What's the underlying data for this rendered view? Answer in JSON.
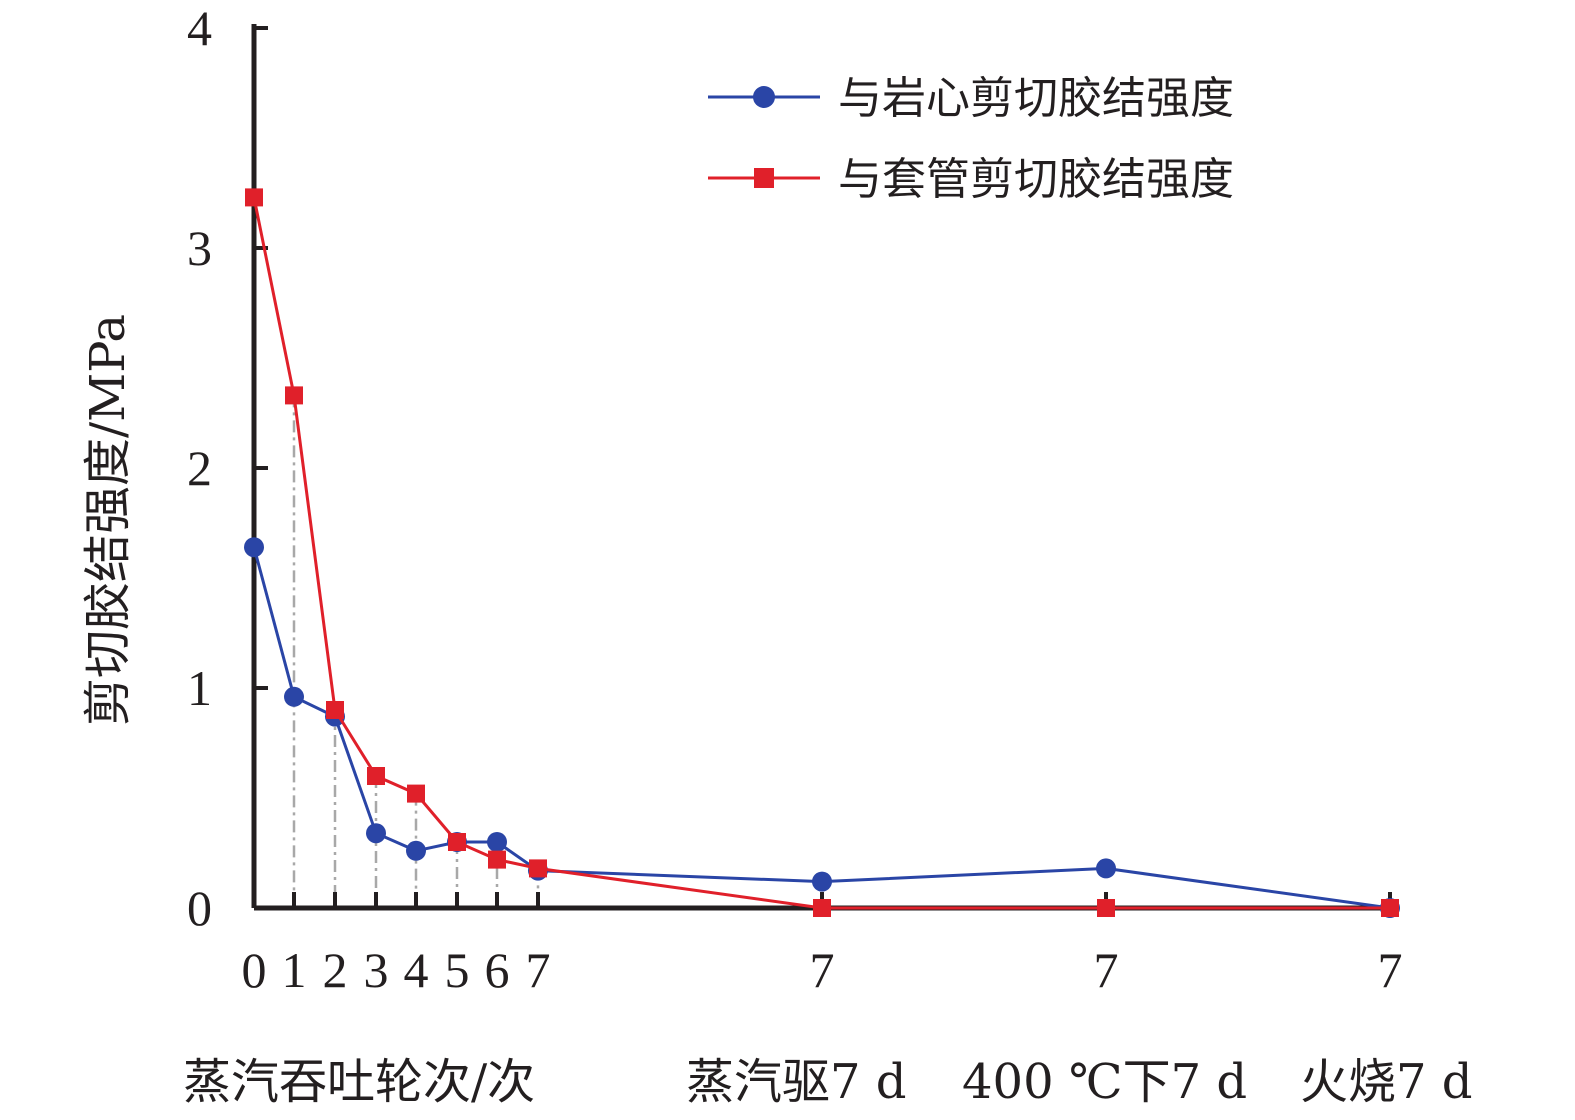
{
  "chart_data": {
    "type": "line",
    "ylabel": "剪切胶结强度/MPa",
    "ylim": [
      0,
      4
    ],
    "y_ticks": [
      "0",
      "1",
      "2",
      "3",
      "4"
    ],
    "x_tick_labels": [
      "0",
      "1",
      "2",
      "3",
      "4",
      "5",
      "6",
      "7",
      "7",
      "7",
      "7"
    ],
    "x_group_labels": [
      "蒸汽吞吐轮次/次",
      "蒸汽驱7 d",
      "400 ℃下7 d",
      "火烧7 d"
    ],
    "legend_position": "top-right",
    "grid": false,
    "series": [
      {
        "name": "与岩心剪切胶结强度",
        "color": "#2a45a6",
        "marker": "circle",
        "values": [
          1.64,
          0.96,
          0.87,
          0.34,
          0.26,
          0.3,
          0.3,
          0.17,
          0.12,
          0.18,
          0.0
        ]
      },
      {
        "name": "与套管剪切胶结强度",
        "color": "#e0202a",
        "marker": "square",
        "values": [
          3.23,
          2.33,
          0.9,
          0.6,
          0.52,
          0.3,
          0.22,
          0.18,
          0.0,
          0.0,
          0.0
        ]
      }
    ]
  }
}
